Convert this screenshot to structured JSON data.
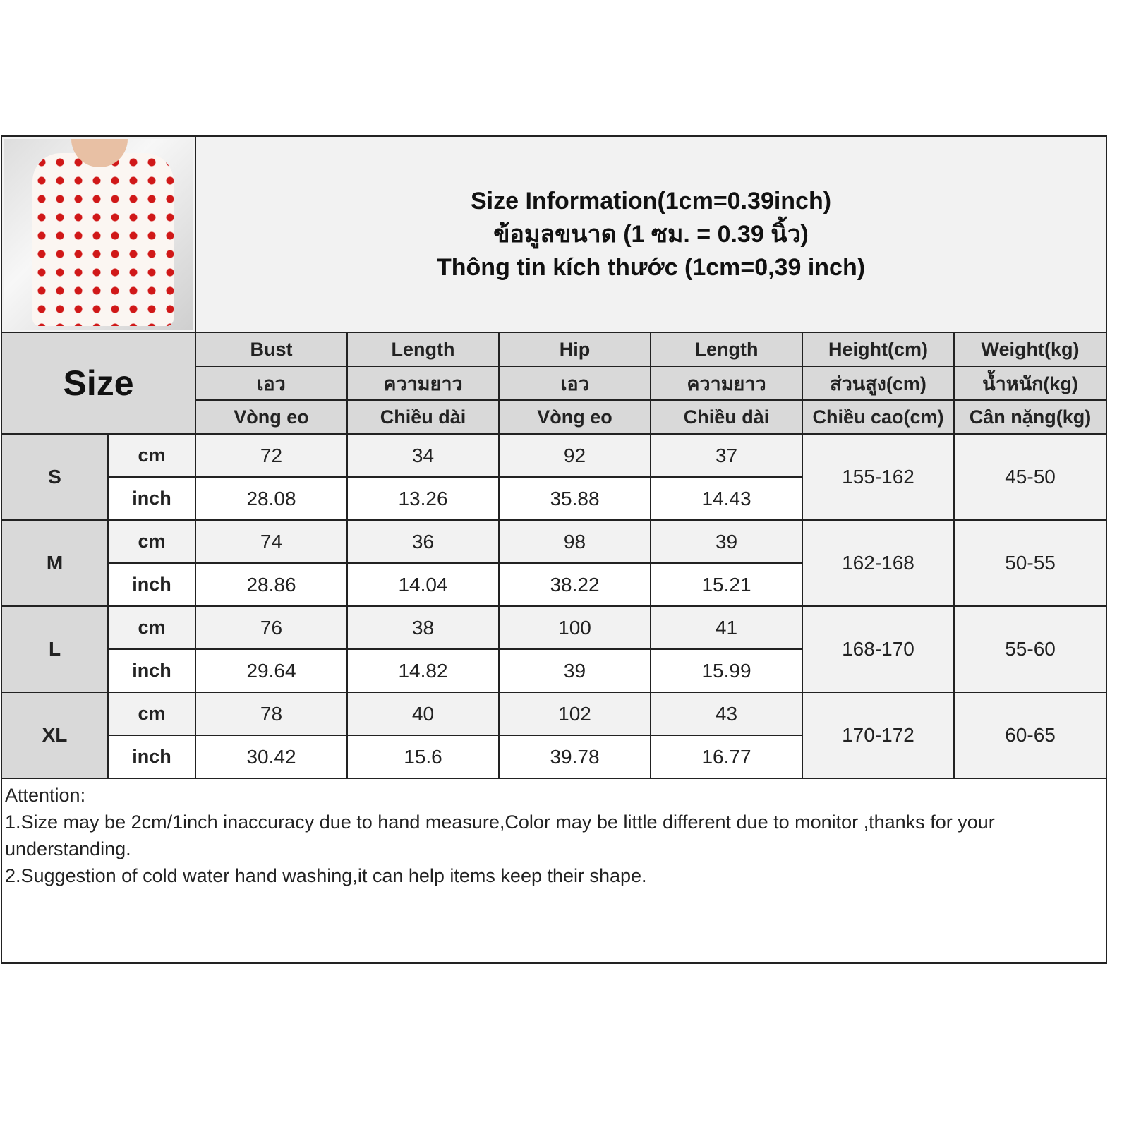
{
  "title_lines": [
    "Size Information(1cm=0.39inch)",
    "ข้อมูลขนาด (1 ซม. = 0.39 นิ้ว)",
    "Thông tin kích thước (1cm=0,39 inch)"
  ],
  "size_header": "Size",
  "columns": [
    {
      "en": "Bust",
      "th": "เอว",
      "vi": "Vòng eo"
    },
    {
      "en": "Length",
      "th": "ความยาว",
      "vi": "Chiều dài"
    },
    {
      "en": "Hip",
      "th": "เอว",
      "vi": "Vòng eo"
    },
    {
      "en": "Length",
      "th": "ความยาว",
      "vi": "Chiều dài"
    },
    {
      "en": "Height(cm)",
      "th": "ส่วนสูง(cm)",
      "vi": "Chiều cao(cm)"
    },
    {
      "en": "Weight(kg)",
      "th": "น้ำหนัก(kg)",
      "vi": "Cân nặng(kg)"
    }
  ],
  "units": {
    "cm": "cm",
    "inch": "inch"
  },
  "sizes": [
    {
      "size": "S",
      "cm": [
        "72",
        "34",
        "92",
        "37"
      ],
      "inch": [
        "28.08",
        "13.26",
        "35.88",
        "14.43"
      ],
      "height": "155-162",
      "weight": "45-50"
    },
    {
      "size": "M",
      "cm": [
        "74",
        "36",
        "98",
        "39"
      ],
      "inch": [
        "28.86",
        "14.04",
        "38.22",
        "15.21"
      ],
      "height": "162-168",
      "weight": "50-55"
    },
    {
      "size": "L",
      "cm": [
        "76",
        "38",
        "100",
        "41"
      ],
      "inch": [
        "29.64",
        "14.82",
        "39",
        "15.99"
      ],
      "height": "168-170",
      "weight": "55-60"
    },
    {
      "size": "XL",
      "cm": [
        "78",
        "40",
        "102",
        "43"
      ],
      "inch": [
        "30.42",
        "15.6",
        "39.78",
        "16.77"
      ],
      "height": "170-172",
      "weight": "60-65"
    }
  ],
  "notes": {
    "heading": "Attention:",
    "items": [
      "1.Size may be 2cm/1inch inaccuracy due to hand measure,Color may be little different due to monitor ,thanks for your understanding.",
      "2.Suggestion of cold water hand washing,it can help items keep their shape."
    ]
  },
  "colors": {
    "header_gray": "#d9d9d9",
    "light_gray": "#f2f2f2",
    "border": "#222222",
    "print_red": "#d01818"
  }
}
